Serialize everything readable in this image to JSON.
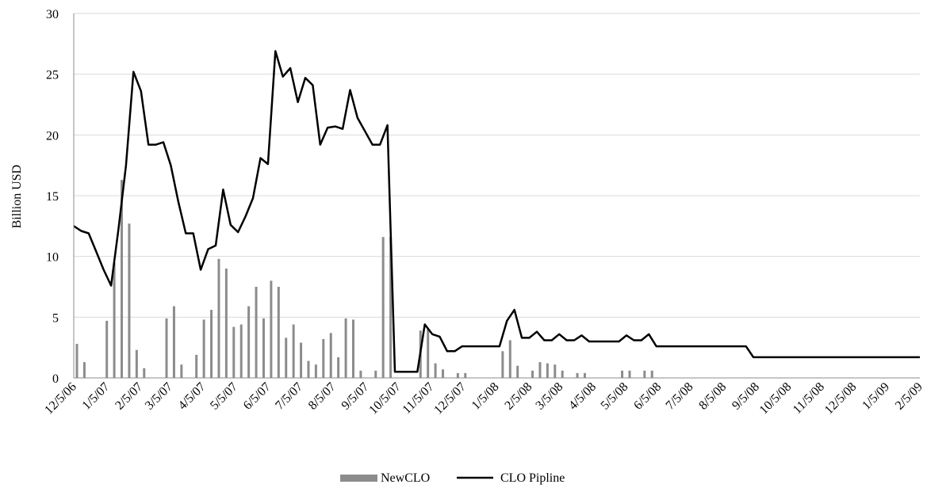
{
  "chart_data": {
    "type": "bar+line",
    "title": "",
    "xlabel": "",
    "ylabel": "Billion USD",
    "ylim": [
      0,
      30
    ],
    "yticks": [
      "0",
      "5",
      "10",
      "15",
      "20",
      "25",
      "30"
    ],
    "xlim": [
      "2006-12-05",
      "2009-02-05"
    ],
    "xtick_labels": [
      "12/5/06",
      "1/5/07",
      "2/5/07",
      "3/5/07",
      "4/5/07",
      "5/5/07",
      "6/5/07",
      "7/5/07",
      "8/5/07",
      "9/5/07",
      "10/5/07",
      "11/5/07",
      "12/5/07",
      "1/5/08",
      "2/5/08",
      "3/5/08",
      "4/5/08",
      "5/5/08",
      "6/5/08",
      "7/5/08",
      "8/5/08",
      "9/5/08",
      "10/5/08",
      "11/5/08",
      "12/5/08",
      "1/5/09",
      "2/5/09"
    ],
    "grid": "horizontal",
    "legend_position": "bottom",
    "colors": {
      "bar": "#8c8c8c",
      "line": "#000000",
      "grid": "#d9d9d9",
      "axis": "#8c8c8c"
    },
    "series": [
      {
        "name": "NewCLO",
        "type": "bar",
        "x": [
          "2006-12-05",
          "2006-12-12",
          "2006-12-19",
          "2006-12-26",
          "2007-01-02",
          "2007-01-09",
          "2007-01-16",
          "2007-01-23",
          "2007-01-30",
          "2007-02-06",
          "2007-02-13",
          "2007-02-20",
          "2007-02-27",
          "2007-03-06",
          "2007-03-13",
          "2007-03-20",
          "2007-03-27",
          "2007-04-03",
          "2007-04-10",
          "2007-04-17",
          "2007-04-24",
          "2007-05-01",
          "2007-05-08",
          "2007-05-15",
          "2007-05-22",
          "2007-05-29",
          "2007-06-05",
          "2007-06-12",
          "2007-06-19",
          "2007-06-26",
          "2007-07-03",
          "2007-07-10",
          "2007-07-17",
          "2007-07-24",
          "2007-07-31",
          "2007-08-07",
          "2007-08-14",
          "2007-08-21",
          "2007-08-28",
          "2007-09-04",
          "2007-09-11",
          "2007-09-18",
          "2007-09-25",
          "2007-10-02",
          "2007-10-09",
          "2007-10-16",
          "2007-10-23",
          "2007-10-30",
          "2007-11-06",
          "2007-11-13",
          "2007-11-20",
          "2007-11-27",
          "2007-12-04",
          "2007-12-11",
          "2007-12-18",
          "2007-12-25",
          "2008-01-01",
          "2008-01-08",
          "2008-01-15",
          "2008-01-22",
          "2008-01-29",
          "2008-02-05",
          "2008-02-12",
          "2008-02-19",
          "2008-02-26",
          "2008-03-04",
          "2008-03-11",
          "2008-03-18",
          "2008-03-25",
          "2008-04-01",
          "2008-04-08",
          "2008-04-15",
          "2008-04-22",
          "2008-04-29",
          "2008-05-06",
          "2008-05-13",
          "2008-05-20",
          "2008-05-27",
          "2008-06-03"
        ],
        "values": [
          2.8,
          1.3,
          0,
          0,
          4.7,
          9.5,
          16.3,
          12.7,
          2.3,
          0.8,
          0,
          0,
          4.9,
          5.9,
          1.1,
          0,
          1.9,
          4.8,
          5.6,
          9.8,
          9.0,
          4.2,
          4.4,
          5.9,
          7.5,
          4.9,
          8.0,
          7.5,
          3.3,
          4.4,
          2.9,
          1.4,
          1.1,
          3.2,
          3.7,
          1.7,
          4.9,
          4.8,
          0.6,
          0,
          0.6,
          11.6,
          11.6,
          0,
          0,
          0,
          3.9,
          4.0,
          1.2,
          0.7,
          0,
          0.4,
          0.4,
          0,
          0,
          0,
          0,
          2.2,
          3.1,
          1.0,
          0,
          0.6,
          1.3,
          1.2,
          1.1,
          0.6,
          0,
          0.4,
          0.4,
          0,
          0,
          0,
          0,
          0.6,
          0.6,
          0,
          0.6,
          0.6,
          0
        ]
      },
      {
        "name": "CLO Pipline",
        "type": "line",
        "x": [
          "2006-12-05",
          "2006-12-12",
          "2006-12-19",
          "2006-12-26",
          "2007-01-02",
          "2007-01-09",
          "2007-01-16",
          "2007-01-23",
          "2007-01-30",
          "2007-02-06",
          "2007-02-13",
          "2007-02-20",
          "2007-02-27",
          "2007-03-06",
          "2007-03-13",
          "2007-03-20",
          "2007-03-27",
          "2007-04-03",
          "2007-04-10",
          "2007-04-17",
          "2007-04-24",
          "2007-05-01",
          "2007-05-08",
          "2007-05-15",
          "2007-05-22",
          "2007-05-29",
          "2007-06-05",
          "2007-06-12",
          "2007-06-19",
          "2007-06-26",
          "2007-07-03",
          "2007-07-10",
          "2007-07-17",
          "2007-07-24",
          "2007-07-31",
          "2007-08-07",
          "2007-08-14",
          "2007-08-21",
          "2007-08-28",
          "2007-09-04",
          "2007-09-11",
          "2007-09-18",
          "2007-09-25",
          "2007-10-02",
          "2007-10-09",
          "2007-10-16",
          "2007-10-23",
          "2007-10-30",
          "2007-11-06",
          "2007-11-13",
          "2007-11-20",
          "2007-11-27",
          "2007-12-04",
          "2007-12-11",
          "2007-12-18",
          "2007-12-25",
          "2008-01-01",
          "2008-01-08",
          "2008-01-15",
          "2008-01-22",
          "2008-01-29",
          "2008-02-05",
          "2008-02-12",
          "2008-02-19",
          "2008-02-26",
          "2008-03-04",
          "2008-03-11",
          "2008-03-18",
          "2008-03-25",
          "2008-04-01",
          "2008-04-08",
          "2008-04-15",
          "2008-04-22",
          "2008-04-29",
          "2008-05-06",
          "2008-05-13",
          "2008-05-20",
          "2008-05-27",
          "2008-06-03",
          "2008-08-26",
          "2008-09-02",
          "2009-02-05"
        ],
        "values": [
          12.5,
          12.1,
          11.9,
          10.4,
          8.9,
          7.6,
          12.3,
          17.5,
          25.2,
          23.6,
          19.2,
          19.2,
          19.4,
          17.5,
          14.5,
          11.9,
          11.9,
          8.9,
          10.6,
          10.9,
          15.5,
          12.6,
          12.0,
          13.3,
          14.8,
          18.1,
          17.6,
          26.9,
          24.8,
          25.5,
          22.7,
          24.7,
          24.1,
          19.2,
          20.6,
          20.7,
          20.5,
          23.7,
          21.4,
          20.3,
          19.2,
          19.2,
          20.8,
          0.5,
          0.5,
          0.5,
          0.5,
          4.4,
          3.6,
          3.4,
          2.2,
          2.2,
          2.6,
          2.6,
          2.6,
          2.6,
          2.6,
          2.6,
          4.7,
          5.6,
          3.3,
          3.3,
          3.8,
          3.1,
          3.1,
          3.6,
          3.1,
          3.1,
          3.5,
          3.0,
          3.0,
          3.0,
          3.0,
          3.0,
          3.5,
          3.1,
          3.1,
          3.6,
          2.6,
          2.6,
          1.7,
          1.7
        ]
      }
    ]
  }
}
